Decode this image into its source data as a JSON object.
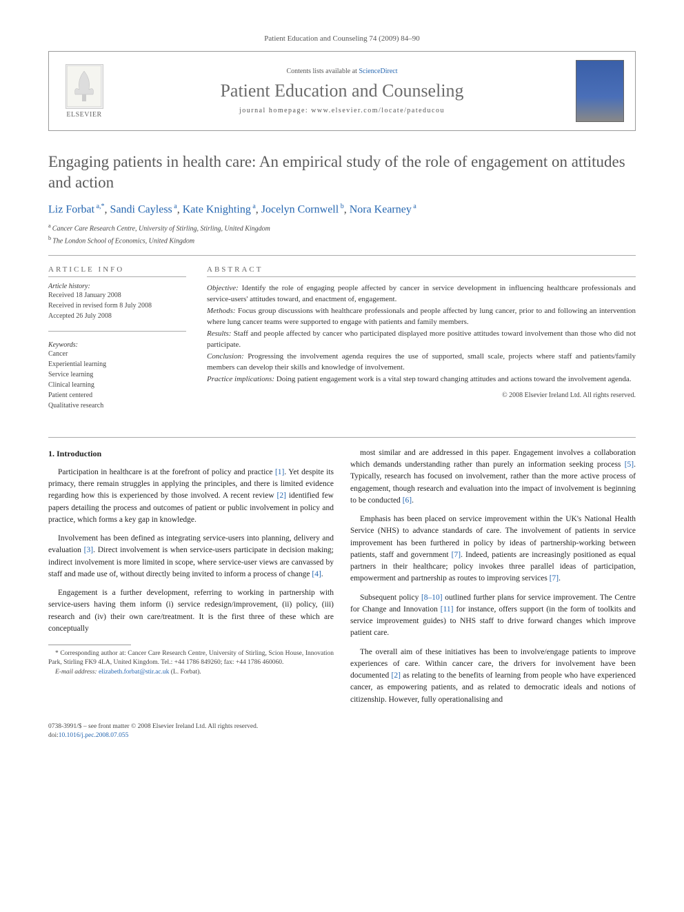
{
  "journal_ref": "Patient Education and Counseling 74 (2009) 84–90",
  "header": {
    "elsevier": "ELSEVIER",
    "contents_prefix": "Contents lists available at ",
    "contents_link": "ScienceDirect",
    "journal_name": "Patient Education and Counseling",
    "homepage_prefix": "journal homepage: ",
    "homepage_url": "www.elsevier.com/locate/pateducou"
  },
  "title": "Engaging patients in health care: An empirical study of the role of engagement on attitudes and action",
  "authors_html": "Liz Forbat|a,*|, Sandi Cayless|a|, Kate Knighting|a|, Jocelyn Cornwell|b|, Nora Kearney|a|",
  "authors": [
    {
      "name": "Liz Forbat",
      "sup": "a,*"
    },
    {
      "name": "Sandi Cayless",
      "sup": "a"
    },
    {
      "name": "Kate Knighting",
      "sup": "a"
    },
    {
      "name": "Jocelyn Cornwell",
      "sup": "b"
    },
    {
      "name": "Nora Kearney",
      "sup": "a"
    }
  ],
  "affiliations": [
    {
      "sup": "a",
      "text": "Cancer Care Research Centre, University of Stirling, Stirling, United Kingdom"
    },
    {
      "sup": "b",
      "text": "The London School of Economics, United Kingdom"
    }
  ],
  "article_info": {
    "heading": "ARTICLE INFO",
    "history_label": "Article history:",
    "history": [
      "Received 18 January 2008",
      "Received in revised form 8 July 2008",
      "Accepted 26 July 2008"
    ],
    "keywords_label": "Keywords:",
    "keywords": [
      "Cancer",
      "Experiential learning",
      "Service learning",
      "Clinical learning",
      "Patient centered",
      "Qualitative research"
    ]
  },
  "abstract": {
    "heading": "ABSTRACT",
    "objective_label": "Objective:",
    "objective": "Identify the role of engaging people affected by cancer in service development in influencing healthcare professionals and service-users' attitudes toward, and enactment of, engagement.",
    "methods_label": "Methods:",
    "methods": "Focus group discussions with healthcare professionals and people affected by lung cancer, prior to and following an intervention where lung cancer teams were supported to engage with patients and family members.",
    "results_label": "Results:",
    "results": "Staff and people affected by cancer who participated displayed more positive attitudes toward involvement than those who did not participate.",
    "conclusion_label": "Conclusion:",
    "conclusion": "Progressing the involvement agenda requires the use of supported, small scale, projects where staff and patients/family members can develop their skills and knowledge of involvement.",
    "practice_label": "Practice implications:",
    "practice": "Doing patient engagement work is a vital step toward changing attitudes and actions toward the involvement agenda.",
    "copyright": "© 2008 Elsevier Ireland Ltd. All rights reserved."
  },
  "body": {
    "section_heading": "1. Introduction",
    "left": [
      "Participation in healthcare is at the forefront of policy and practice [1]. Yet despite its primacy, there remain struggles in applying the principles, and there is limited evidence regarding how this is experienced by those involved. A recent review [2] identified few papers detailing the process and outcomes of patient or public involvement in policy and practice, which forms a key gap in knowledge.",
      "Involvement has been defined as integrating service-users into planning, delivery and evaluation [3]. Direct involvement is when service-users participate in decision making; indirect involvement is more limited in scope, where service-user views are canvassed by staff and made use of, without directly being invited to inform a process of change [4].",
      "Engagement is a further development, referring to working in partnership with service-users having them inform (i) service redesign/improvement, (ii) policy, (iii) research and (iv) their own care/treatment. It is the first three of these which are conceptually"
    ],
    "right": [
      "most similar and are addressed in this paper. Engagement involves a collaboration which demands understanding rather than purely an information seeking process [5]. Typically, research has focused on involvement, rather than the more active process of engagement, though research and evaluation into the impact of involvement is beginning to be conducted [6].",
      "Emphasis has been placed on service improvement within the UK's National Health Service (NHS) to advance standards of care. The involvement of patients in service improvement has been furthered in policy by ideas of partnership-working between patients, staff and government [7]. Indeed, patients are increasingly positioned as equal partners in their healthcare; policy invokes three parallel ideas of participation, empowerment and partnership as routes to improving services [7].",
      "Subsequent policy [8–10] outlined further plans for service improvement. The Centre for Change and Innovation [11] for instance, offers support (in the form of toolkits and service improvement guides) to NHS staff to drive forward changes which improve patient care.",
      "The overall aim of these initiatives has been to involve/engage patients to improve experiences of care. Within cancer care, the drivers for involvement have been documented [2] as relating to the benefits of learning from people who have experienced cancer, as empowering patients, and as related to democratic ideals and notions of citizenship. However, fully operationalising and"
    ]
  },
  "footnote": {
    "corr_label": "* Corresponding author at:",
    "corr_text": "Cancer Care Research Centre, University of Stirling, Scion House, Innovation Park, Stirling FK9 4LA, United Kingdom.",
    "tel": "Tel.: +44 1786 849260; fax: +44 1786 460060.",
    "email_label": "E-mail address:",
    "email": "elizabeth.forbat@stir.ac.uk",
    "email_name": "(L. Forbat)."
  },
  "footer": {
    "issn": "0738-3991/$ – see front matter © 2008 Elsevier Ireland Ltd. All rights reserved.",
    "doi_label": "doi:",
    "doi": "10.1016/j.pec.2008.07.055"
  },
  "refs": {
    "r1": "[1]",
    "r2": "[2]",
    "r3": "[3]",
    "r4": "[4]",
    "r5": "[5]",
    "r6": "[6]",
    "r7": "[7]",
    "r8_10": "[8–10]",
    "r11": "[11]"
  },
  "colors": {
    "link": "#2566b0",
    "text": "#333333",
    "heading_gray": "#5a5a5a",
    "border": "#999999"
  }
}
